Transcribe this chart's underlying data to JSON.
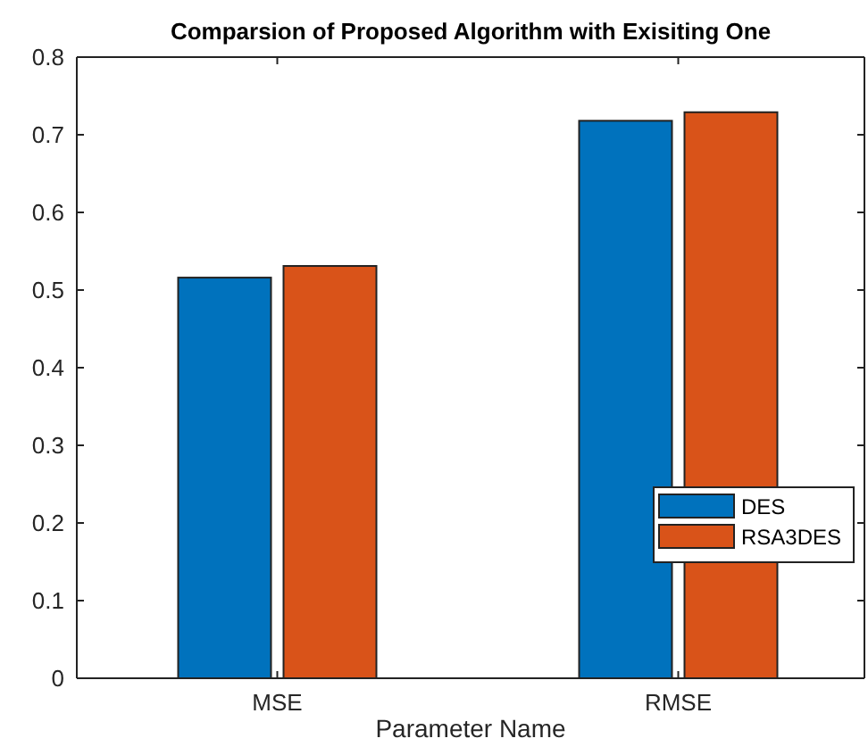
{
  "chart_data": {
    "type": "bar",
    "title": "Comparsion of Proposed Algorithm with Exisiting One",
    "xlabel": "Parameter Name",
    "categories": [
      "MSE",
      "RMSE"
    ],
    "series": [
      {
        "name": "DES",
        "color": "#0072bd",
        "values": [
          0.516,
          0.718
        ]
      },
      {
        "name": "RSA3DES",
        "color": "#d95319",
        "values": [
          0.531,
          0.729
        ]
      }
    ],
    "ylim": [
      0,
      0.8
    ],
    "yticks": [
      0,
      0.1,
      0.2,
      0.3,
      0.4,
      0.5,
      0.6,
      0.7,
      0.8
    ],
    "grid": false,
    "legend": "bottom right"
  }
}
